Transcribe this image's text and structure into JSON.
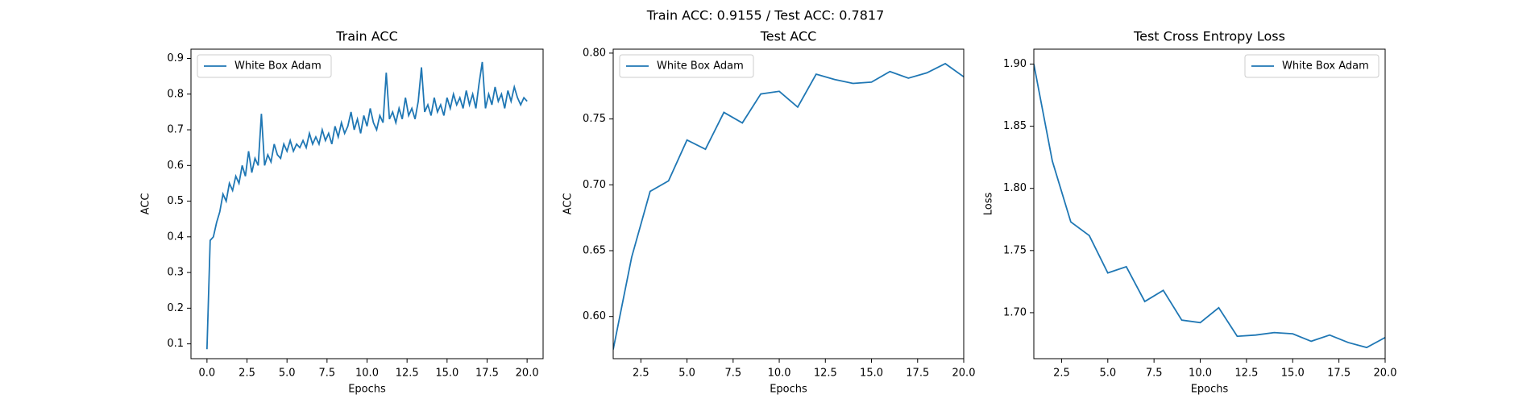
{
  "title": "Train ACC: 0.9155 / Test ACC: 0.7817",
  "chart_data": [
    {
      "type": "line",
      "title": "Train ACC",
      "xlabel": "Epochs",
      "ylabel": "ACC",
      "legend": "upper left",
      "xlim": [
        -1,
        21
      ],
      "ylim": [
        0.0585,
        0.926
      ],
      "xticks": [
        {
          "value": 0,
          "label": "0.0"
        },
        2.5,
        {
          "value": 5,
          "label": "5.0"
        },
        7.5,
        {
          "value": 10,
          "label": "10.0"
        },
        12.5,
        {
          "value": 15,
          "label": "15.0"
        },
        17.5,
        {
          "value": 20,
          "label": "20.0"
        }
      ],
      "yticks": [
        0.1,
        0.2,
        0.3,
        0.4,
        0.5,
        0.6,
        0.7,
        0.8,
        0.9
      ],
      "x": [
        0,
        0.2,
        0.4,
        0.6,
        0.8,
        1,
        1.2,
        1.4,
        1.6,
        1.8,
        2,
        2.2,
        2.4,
        2.6,
        2.8,
        3,
        3.2,
        3.4,
        3.6,
        3.8,
        4,
        4.2,
        4.4,
        4.6,
        4.8,
        5,
        5.2,
        5.4,
        5.6,
        5.8,
        6,
        6.2,
        6.4,
        6.6,
        6.8,
        7,
        7.2,
        7.4,
        7.6,
        7.8,
        8,
        8.2,
        8.4,
        8.6,
        8.8,
        9,
        9.2,
        9.4,
        9.6,
        9.8,
        10,
        10.2,
        10.4,
        10.6,
        10.8,
        11,
        11.2,
        11.4,
        11.6,
        11.8,
        12,
        12.2,
        12.4,
        12.6,
        12.8,
        13,
        13.2,
        13.4,
        13.6,
        13.8,
        14,
        14.2,
        14.4,
        14.6,
        14.8,
        15,
        15.2,
        15.4,
        15.6,
        15.8,
        16,
        16.2,
        16.4,
        16.6,
        16.8,
        17,
        17.2,
        17.4,
        17.6,
        17.8,
        18,
        18.2,
        18.4,
        18.6,
        18.8,
        19,
        19.2,
        19.4,
        19.6,
        19.8,
        20
      ],
      "series": [
        {
          "name": "White Box Adam",
          "color": "#1f77b4",
          "values": [
            0.085,
            0.39,
            0.4,
            0.44,
            0.47,
            0.52,
            0.5,
            0.55,
            0.53,
            0.57,
            0.55,
            0.6,
            0.57,
            0.64,
            0.58,
            0.62,
            0.6,
            0.745,
            0.6,
            0.63,
            0.61,
            0.66,
            0.63,
            0.62,
            0.66,
            0.64,
            0.67,
            0.64,
            0.66,
            0.65,
            0.67,
            0.65,
            0.69,
            0.66,
            0.68,
            0.66,
            0.7,
            0.67,
            0.69,
            0.66,
            0.71,
            0.68,
            0.72,
            0.69,
            0.71,
            0.75,
            0.7,
            0.73,
            0.69,
            0.74,
            0.71,
            0.76,
            0.72,
            0.7,
            0.74,
            0.72,
            0.86,
            0.73,
            0.75,
            0.72,
            0.76,
            0.73,
            0.79,
            0.74,
            0.76,
            0.73,
            0.78,
            0.875,
            0.75,
            0.77,
            0.74,
            0.79,
            0.75,
            0.77,
            0.74,
            0.79,
            0.76,
            0.8,
            0.77,
            0.79,
            0.76,
            0.81,
            0.77,
            0.8,
            0.76,
            0.83,
            0.89,
            0.76,
            0.8,
            0.77,
            0.82,
            0.78,
            0.8,
            0.76,
            0.81,
            0.78,
            0.82,
            0.79,
            0.77,
            0.79,
            0.78
          ]
        }
      ]
    },
    {
      "type": "line",
      "title": "Test ACC",
      "xlabel": "Epochs",
      "ylabel": "ACC",
      "legend": "upper left",
      "xlim": [
        1,
        20
      ],
      "ylim": [
        0.568,
        0.803
      ],
      "xticks": [
        2.5,
        {
          "value": 5,
          "label": "5.0"
        },
        7.5,
        {
          "value": 10,
          "label": "10.0"
        },
        12.5,
        {
          "value": 15,
          "label": "15.0"
        },
        17.5,
        {
          "value": 20,
          "label": "20.0"
        }
      ],
      "yticks": [
        {
          "value": 0.6,
          "label": "0.60"
        },
        0.65,
        {
          "value": 0.7,
          "label": "0.70"
        },
        0.75,
        {
          "value": 0.8,
          "label": "0.80"
        }
      ],
      "x": [
        1,
        2,
        3,
        4,
        5,
        6,
        7,
        8,
        9,
        10,
        11,
        12,
        13,
        14,
        15,
        16,
        17,
        18,
        19,
        20
      ],
      "series": [
        {
          "name": "White Box Adam",
          "color": "#1f77b4",
          "values": [
            0.575,
            0.645,
            0.695,
            0.703,
            0.734,
            0.727,
            0.755,
            0.747,
            0.769,
            0.771,
            0.759,
            0.784,
            0.78,
            0.777,
            0.778,
            0.786,
            0.781,
            0.785,
            0.792,
            0.782
          ]
        }
      ]
    },
    {
      "type": "line",
      "title": "Test Cross Entropy Loss",
      "xlabel": "Epochs",
      "ylabel": "Loss",
      "legend": "upper right",
      "xlim": [
        1,
        20
      ],
      "ylim": [
        1.663,
        1.912
      ],
      "xticks": [
        2.5,
        {
          "value": 5,
          "label": "5.0"
        },
        7.5,
        {
          "value": 10,
          "label": "10.0"
        },
        12.5,
        {
          "value": 15,
          "label": "15.0"
        },
        17.5,
        {
          "value": 20,
          "label": "20.0"
        }
      ],
      "yticks": [
        {
          "value": 1.7,
          "label": "1.70"
        },
        1.75,
        {
          "value": 1.8,
          "label": "1.80"
        },
        1.85,
        {
          "value": 1.9,
          "label": "1.90"
        }
      ],
      "x": [
        1,
        2,
        3,
        4,
        5,
        6,
        7,
        8,
        9,
        10,
        11,
        12,
        13,
        14,
        15,
        16,
        17,
        18,
        19,
        20
      ],
      "series": [
        {
          "name": "White Box Adam",
          "color": "#1f77b4",
          "values": [
            1.9,
            1.822,
            1.773,
            1.762,
            1.732,
            1.737,
            1.709,
            1.718,
            1.694,
            1.692,
            1.704,
            1.681,
            1.682,
            1.684,
            1.683,
            1.677,
            1.682,
            1.676,
            1.672,
            1.68
          ]
        }
      ]
    }
  ]
}
